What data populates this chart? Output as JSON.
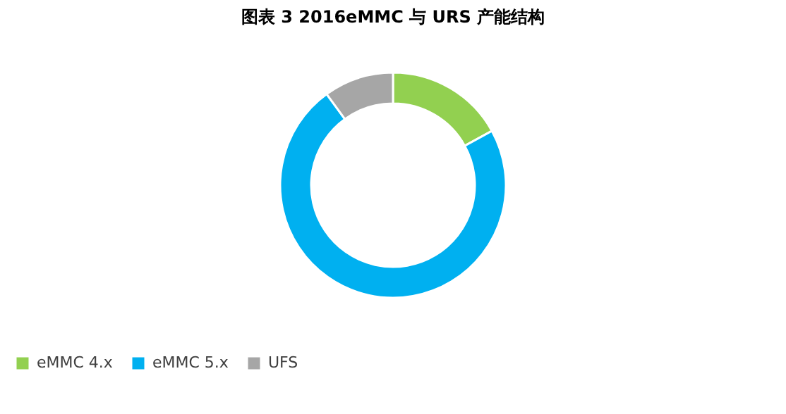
{
  "chart_data": {
    "type": "donut",
    "title": "图表 3    2016eMMC 与 URS 产能结构",
    "categories": [
      "eMMC 4.x",
      "eMMC 5.x",
      "UFS"
    ],
    "values": [
      17,
      73,
      10
    ],
    "colors": [
      "#92d050",
      "#00b0f0",
      "#a6a6a6"
    ],
    "legend": "bottom"
  }
}
